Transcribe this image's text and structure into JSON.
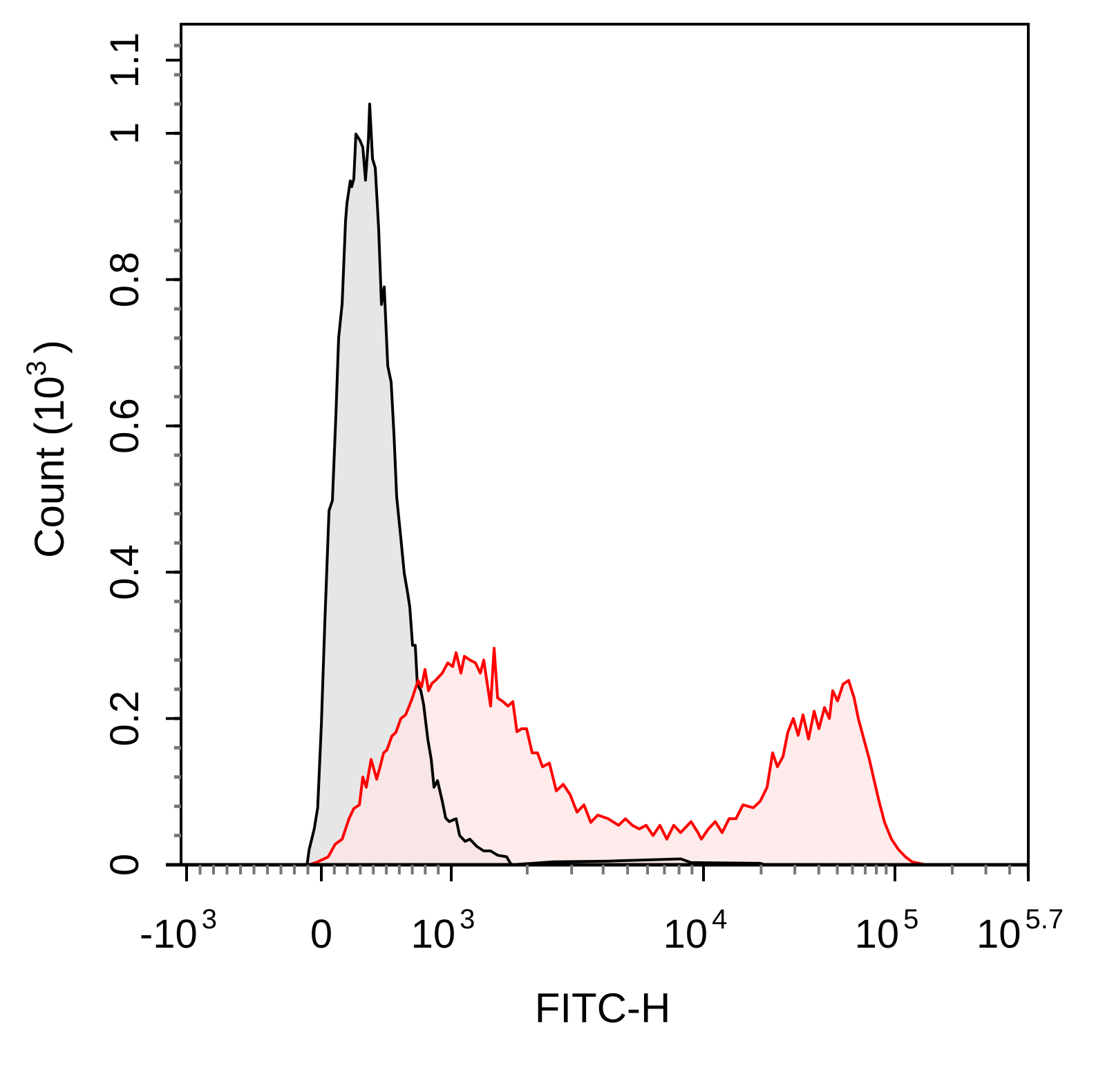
{
  "chart_data": {
    "type": "area",
    "title": "",
    "xlabel": "FITC-H",
    "ylabel": {
      "base": "Count  (10",
      "exp": "3",
      "close": ")"
    },
    "x_scale": "biexponential",
    "xlim": [
      -1000,
      501187
    ],
    "ylim": [
      0,
      1.15
    ],
    "grid": false,
    "x_ticks": [
      {
        "value": -1000,
        "base": "-10",
        "exp": "3"
      },
      {
        "value": 0,
        "base": "0",
        "exp": ""
      },
      {
        "value": 1000,
        "base": "10",
        "exp": "3"
      },
      {
        "value": 10000,
        "base": "10",
        "exp": "4"
      },
      {
        "value": 100000,
        "base": "10",
        "exp": "5"
      },
      {
        "value": 501187,
        "base": "10",
        "exp": "5.7"
      }
    ],
    "y_ticks": [
      {
        "value": 0,
        "label": "0"
      },
      {
        "value": 0.2,
        "label": "0.2"
      },
      {
        "value": 0.4,
        "label": "0.4"
      },
      {
        "value": 0.6,
        "label": "0.6"
      },
      {
        "value": 0.8,
        "label": "0.8"
      },
      {
        "value": 1.0,
        "label": "1"
      },
      {
        "value": 1.1,
        "label": "1.1"
      }
    ],
    "series": [
      {
        "color": "#000000",
        "fill": "#e6e6e6",
        "x": [
          -106,
          -90,
          -53,
          -27,
          0,
          27,
          59,
          85,
          112,
          133,
          160,
          186,
          197,
          223,
          234,
          250,
          266,
          298,
          319,
          340,
          362,
          372,
          394,
          415,
          441,
          463,
          484,
          511,
          537,
          559,
          580,
          612,
          638,
          665,
          681,
          702,
          723,
          739,
          766,
          787,
          819,
          846,
          867,
          894,
          931,
          957,
          984,
          1045,
          1079,
          1135,
          1185,
          1263,
          1345,
          1432,
          1527,
          1656,
          1730,
          2529,
          4188,
          8128,
          8913,
          19770,
          21000
        ],
        "y": [
          0,
          0.021,
          0.049,
          0.078,
          0.191,
          0.333,
          0.484,
          0.498,
          0.616,
          0.72,
          0.767,
          0.88,
          0.904,
          0.935,
          0.927,
          0.938,
          0.999,
          0.99,
          0.981,
          0.936,
          0.992,
          1.04,
          0.965,
          0.953,
          0.87,
          0.766,
          0.79,
          0.682,
          0.66,
          0.588,
          0.503,
          0.446,
          0.399,
          0.371,
          0.352,
          0.3,
          0.3,
          0.247,
          0.238,
          0.219,
          0.172,
          0.144,
          0.106,
          0.115,
          0.087,
          0.064,
          0.059,
          0.063,
          0.04,
          0.032,
          0.035,
          0.025,
          0.019,
          0.019,
          0.013,
          0.011,
          0,
          0.004,
          0.005,
          0.008,
          0.003,
          0.002,
          0
        ]
      },
      {
        "color": "#ff0000",
        "fill": "#fde4e4",
        "x": [
          -90,
          -27,
          53,
          106,
          160,
          213,
          250,
          293,
          319,
          346,
          383,
          426,
          452,
          479,
          505,
          543,
          574,
          612,
          649,
          681,
          702,
          718,
          745,
          771,
          798,
          825,
          851,
          878,
          931,
          973,
          1013,
          1045,
          1092,
          1127,
          1186,
          1247,
          1304,
          1345,
          1388,
          1432,
          1479,
          1527,
          1604,
          1679,
          1754,
          1821,
          1903,
          1989,
          2093,
          2198,
          2300,
          2449,
          2608,
          2778,
          2958,
          3152,
          3357,
          3575,
          3808,
          4188,
          4605,
          4903,
          5222,
          5561,
          5922,
          6308,
          6718,
          7154,
          7619,
          8114,
          8928,
          9509,
          9812,
          10600,
          11520,
          12520,
          13600,
          14780,
          16070,
          18200,
          19780,
          21490,
          22960,
          24330,
          26010,
          27560,
          29450,
          31240,
          33110,
          35390,
          37830,
          40090,
          42850,
          45420,
          47340,
          50170,
          53620,
          57310,
          61260,
          64380,
          68820,
          73550,
          77930,
          82590,
          88260,
          95930,
          104300,
          113400,
          123200,
          145600,
          179500
        ],
        "y": [
          0,
          0.004,
          0.011,
          0.028,
          0.035,
          0.063,
          0.077,
          0.082,
          0.12,
          0.106,
          0.144,
          0.117,
          0.134,
          0.153,
          0.157,
          0.176,
          0.181,
          0.2,
          0.205,
          0.219,
          0.229,
          0.238,
          0.252,
          0.243,
          0.267,
          0.238,
          0.248,
          0.252,
          0.262,
          0.276,
          0.271,
          0.29,
          0.262,
          0.285,
          0.28,
          0.276,
          0.262,
          0.28,
          0.248,
          0.217,
          0.296,
          0.228,
          0.223,
          0.217,
          0.223,
          0.182,
          0.186,
          0.186,
          0.153,
          0.153,
          0.134,
          0.139,
          0.101,
          0.11,
          0.096,
          0.072,
          0.082,
          0.058,
          0.068,
          0.063,
          0.054,
          0.063,
          0.054,
          0.049,
          0.054,
          0.04,
          0.054,
          0.035,
          0.054,
          0.044,
          0.059,
          0.044,
          0.035,
          0.049,
          0.059,
          0.044,
          0.063,
          0.063,
          0.082,
          0.078,
          0.087,
          0.106,
          0.153,
          0.134,
          0.148,
          0.181,
          0.2,
          0.177,
          0.205,
          0.172,
          0.21,
          0.186,
          0.215,
          0.2,
          0.238,
          0.224,
          0.247,
          0.252,
          0.228,
          0.2,
          0.172,
          0.144,
          0.115,
          0.087,
          0.058,
          0.035,
          0.021,
          0.011,
          0.004,
          0,
          0
        ]
      }
    ]
  }
}
